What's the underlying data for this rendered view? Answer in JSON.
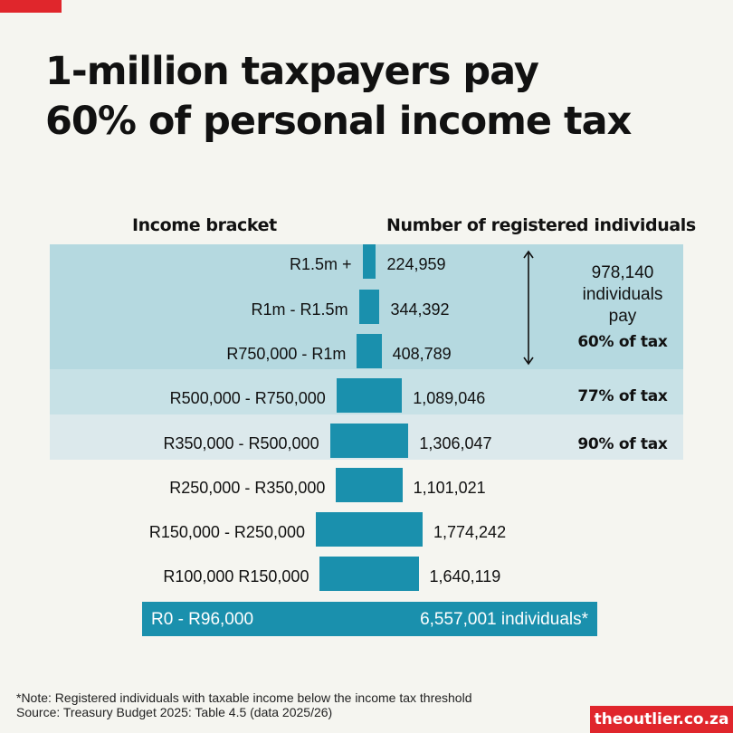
{
  "title_line1": "1-million taxpayers pay",
  "title_line2": "60% of personal income tax",
  "headers": {
    "bracket": "Income bracket",
    "count": "Number of registered individuals"
  },
  "chart_data": {
    "type": "bar",
    "categories": [
      "R1.5m +",
      "R1m - R1.5m",
      "R750,000 - R1m",
      "R500,000 - R750,000",
      "R350,000 - R500,000",
      "R250,000 - R350,000",
      "R150,000 - R250,000",
      "R100,000  R150,000",
      "R0 - R96,000"
    ],
    "values": [
      224959,
      344392,
      408789,
      1089046,
      1306047,
      1101021,
      1774242,
      1640119,
      6557001
    ],
    "value_labels": [
      "224,959",
      "344,392",
      "408,789",
      "1,089,046",
      "1,306,047",
      "1,101,021",
      "1,774,242",
      "1,640,119",
      "6,557,001 individuals*"
    ],
    "title": "1-million taxpayers pay 60% of personal income tax",
    "xlabel": "Number of registered individuals",
    "ylabel": "Income bracket",
    "bar_color": "#1a90ad"
  },
  "annotations": {
    "group_line1": "978,140",
    "group_line2": "individuals",
    "group_line3": "pay",
    "group_share": "60% of tax",
    "share_77": "77% of tax",
    "share_90": "90% of tax"
  },
  "band_colors": [
    "#b5d9e0",
    "#c7e1e6",
    "#dce9ec"
  ],
  "accent_color": "#e0262c",
  "note": "*Note: Registered individuals with taxable income below the income tax threshold",
  "source": "Source: Treasury Budget 2025: Table 4.5 (data 2025/26)",
  "brand": "theoutlier.co.za"
}
